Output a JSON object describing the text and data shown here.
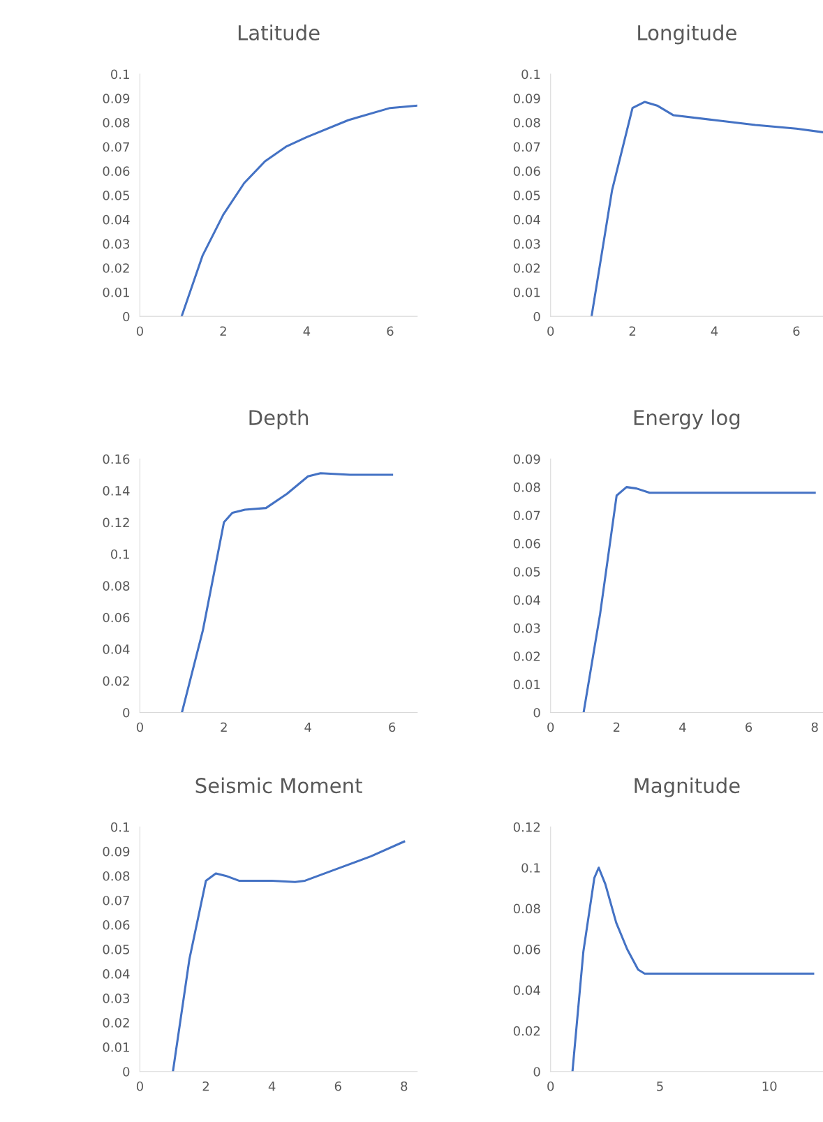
{
  "chart_data": [
    {
      "type": "line",
      "title": "Latitude",
      "x": [
        1,
        1.5,
        2,
        2.5,
        3,
        3.5,
        4,
        5,
        6,
        6.65
      ],
      "series": [
        {
          "color": "#4472c4",
          "values": [
            0,
            0.025,
            0.042,
            0.055,
            0.064,
            0.07,
            0.074,
            0.081,
            0.086,
            0.087
          ]
        }
      ],
      "xlim": [
        0,
        6.65
      ],
      "xticks": [
        0,
        2,
        4,
        6
      ],
      "ylim": [
        0,
        0.1
      ],
      "yticks": [
        0,
        0.01,
        0.02,
        0.03,
        0.04,
        0.05,
        0.06,
        0.07,
        0.08,
        0.09,
        0.1
      ],
      "grid": false,
      "legend": false
    },
    {
      "type": "line",
      "title": "Longitude",
      "x": [
        1,
        1.5,
        2,
        2.3,
        2.6,
        3,
        4,
        5,
        6,
        6.65
      ],
      "series": [
        {
          "color": "#4472c4",
          "values": [
            0,
            0.052,
            0.086,
            0.0885,
            0.087,
            0.083,
            0.081,
            0.079,
            0.0775,
            0.076
          ]
        }
      ],
      "xlim": [
        0,
        6.65
      ],
      "xticks": [
        0,
        2,
        4,
        6
      ],
      "ylim": [
        0,
        0.1
      ],
      "yticks": [
        0,
        0.01,
        0.02,
        0.03,
        0.04,
        0.05,
        0.06,
        0.07,
        0.08,
        0.09,
        0.1
      ],
      "grid": false,
      "legend": false
    },
    {
      "type": "line",
      "title": "Depth",
      "x": [
        1,
        1.5,
        2,
        2.2,
        2.5,
        3,
        3.5,
        4,
        4.3,
        5,
        6
      ],
      "series": [
        {
          "color": "#4472c4",
          "values": [
            0,
            0.052,
            0.12,
            0.126,
            0.128,
            0.129,
            0.138,
            0.149,
            0.151,
            0.15,
            0.15
          ]
        }
      ],
      "xlim": [
        0,
        6.6
      ],
      "xticks": [
        0,
        2,
        4,
        6
      ],
      "ylim": [
        0,
        0.16
      ],
      "yticks": [
        0,
        0.02,
        0.04,
        0.06,
        0.08,
        0.1,
        0.12,
        0.14,
        0.16
      ],
      "grid": false,
      "legend": false
    },
    {
      "type": "line",
      "title": "Energy log",
      "x": [
        1,
        1.5,
        2,
        2.3,
        2.6,
        3,
        4,
        5,
        6,
        7,
        8
      ],
      "series": [
        {
          "color": "#4472c4",
          "values": [
            0,
            0.035,
            0.077,
            0.08,
            0.0795,
            0.078,
            0.078,
            0.078,
            0.078,
            0.078,
            0.078
          ]
        }
      ],
      "xlim": [
        0,
        8.25
      ],
      "xticks": [
        0,
        2,
        4,
        6,
        8
      ],
      "ylim": [
        0,
        0.09
      ],
      "yticks": [
        0,
        0.01,
        0.02,
        0.03,
        0.04,
        0.05,
        0.06,
        0.07,
        0.08,
        0.09
      ],
      "grid": false,
      "legend": false
    },
    {
      "type": "line",
      "title": "Seismic Moment",
      "x": [
        1,
        1.5,
        2,
        2.3,
        2.6,
        3,
        4,
        4.7,
        5,
        6,
        7,
        8
      ],
      "series": [
        {
          "color": "#4472c4",
          "values": [
            0,
            0.046,
            0.078,
            0.081,
            0.08,
            0.078,
            0.078,
            0.0775,
            0.078,
            0.083,
            0.088,
            0.094
          ]
        }
      ],
      "xlim": [
        0,
        8.4
      ],
      "xticks": [
        0,
        2,
        4,
        6,
        8
      ],
      "ylim": [
        0,
        0.1
      ],
      "yticks": [
        0,
        0.01,
        0.02,
        0.03,
        0.04,
        0.05,
        0.06,
        0.07,
        0.08,
        0.09,
        0.1
      ],
      "grid": false,
      "legend": false
    },
    {
      "type": "line",
      "title": "Magnitude",
      "x": [
        1,
        1.5,
        2,
        2.2,
        2.5,
        3,
        3.5,
        4,
        4.3,
        5,
        6,
        8,
        10,
        12
      ],
      "series": [
        {
          "color": "#4472c4",
          "values": [
            0,
            0.059,
            0.095,
            0.1,
            0.092,
            0.073,
            0.06,
            0.05,
            0.048,
            0.048,
            0.048,
            0.048,
            0.048,
            0.048
          ]
        }
      ],
      "xlim": [
        0,
        12.45
      ],
      "xticks": [
        0,
        5,
        10
      ],
      "ylim": [
        0,
        0.12
      ],
      "yticks": [
        0,
        0.02,
        0.04,
        0.06,
        0.08,
        0.1,
        0.12
      ],
      "grid": false,
      "legend": false
    }
  ]
}
